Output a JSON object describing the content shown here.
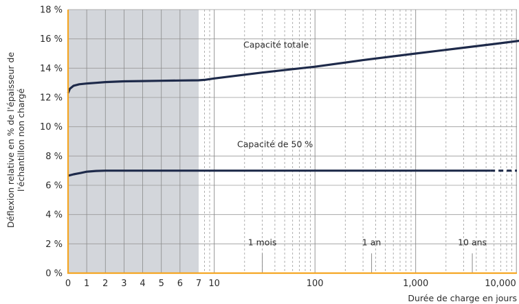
{
  "chart_data": {
    "type": "line",
    "title": "",
    "xlabel": "Durée de charge en jours",
    "ylabel_lines": [
      "Déflexion relative en % de l'épaisseur de",
      "l'échantillon non chargé"
    ],
    "ylim": [
      0,
      18
    ],
    "y_ticks": [
      {
        "value": 0,
        "label": "0 %"
      },
      {
        "value": 2,
        "label": "2 %"
      },
      {
        "value": 4,
        "label": "4 %"
      },
      {
        "value": 6,
        "label": "6 %"
      },
      {
        "value": 8,
        "label": "8 %"
      },
      {
        "value": 10,
        "label": "10 %"
      },
      {
        "value": 12,
        "label": "12 %"
      },
      {
        "value": 14,
        "label": "14 %"
      },
      {
        "value": 16,
        "label": "16 %"
      },
      {
        "value": 18,
        "label": "18 %"
      }
    ],
    "x_scale": "linear 0–7 days (shaded), logarithmic 7–15,000 days",
    "x_ticks": [
      {
        "value": 0,
        "label": "0"
      },
      {
        "value": 1,
        "label": "1"
      },
      {
        "value": 2,
        "label": "2"
      },
      {
        "value": 3,
        "label": "3"
      },
      {
        "value": 4,
        "label": "4"
      },
      {
        "value": 5,
        "label": "5"
      },
      {
        "value": 6,
        "label": "6"
      },
      {
        "value": 7,
        "label": "7"
      },
      {
        "value": 10,
        "label": "10"
      },
      {
        "value": 100,
        "label": "100"
      },
      {
        "value": 1000,
        "label": "1,000"
      },
      {
        "value": 10000,
        "label": "10,000"
      }
    ],
    "shaded_region": [
      0,
      7
    ],
    "series": [
      {
        "name": "Capacité totale",
        "color": "#1e2a4a",
        "points": [
          [
            0,
            12.3
          ],
          [
            0.1,
            12.6
          ],
          [
            0.3,
            12.8
          ],
          [
            0.6,
            12.9
          ],
          [
            1,
            12.95
          ],
          [
            1.5,
            13.0
          ],
          [
            2,
            13.05
          ],
          [
            3,
            13.1
          ],
          [
            4,
            13.12
          ],
          [
            5,
            13.14
          ],
          [
            6,
            13.16
          ],
          [
            7,
            13.17
          ],
          [
            8,
            13.2
          ],
          [
            10,
            13.3
          ],
          [
            30,
            13.7
          ],
          [
            100,
            14.1
          ],
          [
            300,
            14.55
          ],
          [
            1000,
            15.0
          ],
          [
            3000,
            15.4
          ],
          [
            6000,
            15.65
          ],
          [
            15000,
            16.0
          ]
        ]
      },
      {
        "name": "Capacité de 50 %",
        "color": "#1e2a4a",
        "points": [
          [
            0,
            6.65
          ],
          [
            0.3,
            6.75
          ],
          [
            0.7,
            6.85
          ],
          [
            1,
            6.93
          ],
          [
            1.5,
            6.98
          ],
          [
            2,
            7.0
          ],
          [
            7,
            7.0
          ],
          [
            100,
            7.0
          ],
          [
            1000,
            7.0
          ],
          [
            5500,
            7.0
          ]
        ],
        "dashed_extension": [
          [
            5500,
            7.0
          ],
          [
            15000,
            7.0
          ]
        ]
      }
    ],
    "annotations": [
      {
        "text": "Capacité totale",
        "x": 100,
        "y": 15.4
      },
      {
        "text": "Capacité de 50 %",
        "x": 100,
        "y": 8.6
      },
      {
        "text": "1 mois",
        "x": 30,
        "y": 1.9,
        "marker_x": 30
      },
      {
        "text": "1 an",
        "x": 365,
        "y": 1.9,
        "marker_x": 365
      },
      {
        "text": "10 ans",
        "x": 3650,
        "y": 1.9,
        "marker_x": 3650
      }
    ],
    "colors": {
      "axis": "#f5a623",
      "shade": "#d3d6db",
      "grid": "#999999",
      "line": "#1e2a4a"
    },
    "grid": true,
    "legend": "none"
  }
}
